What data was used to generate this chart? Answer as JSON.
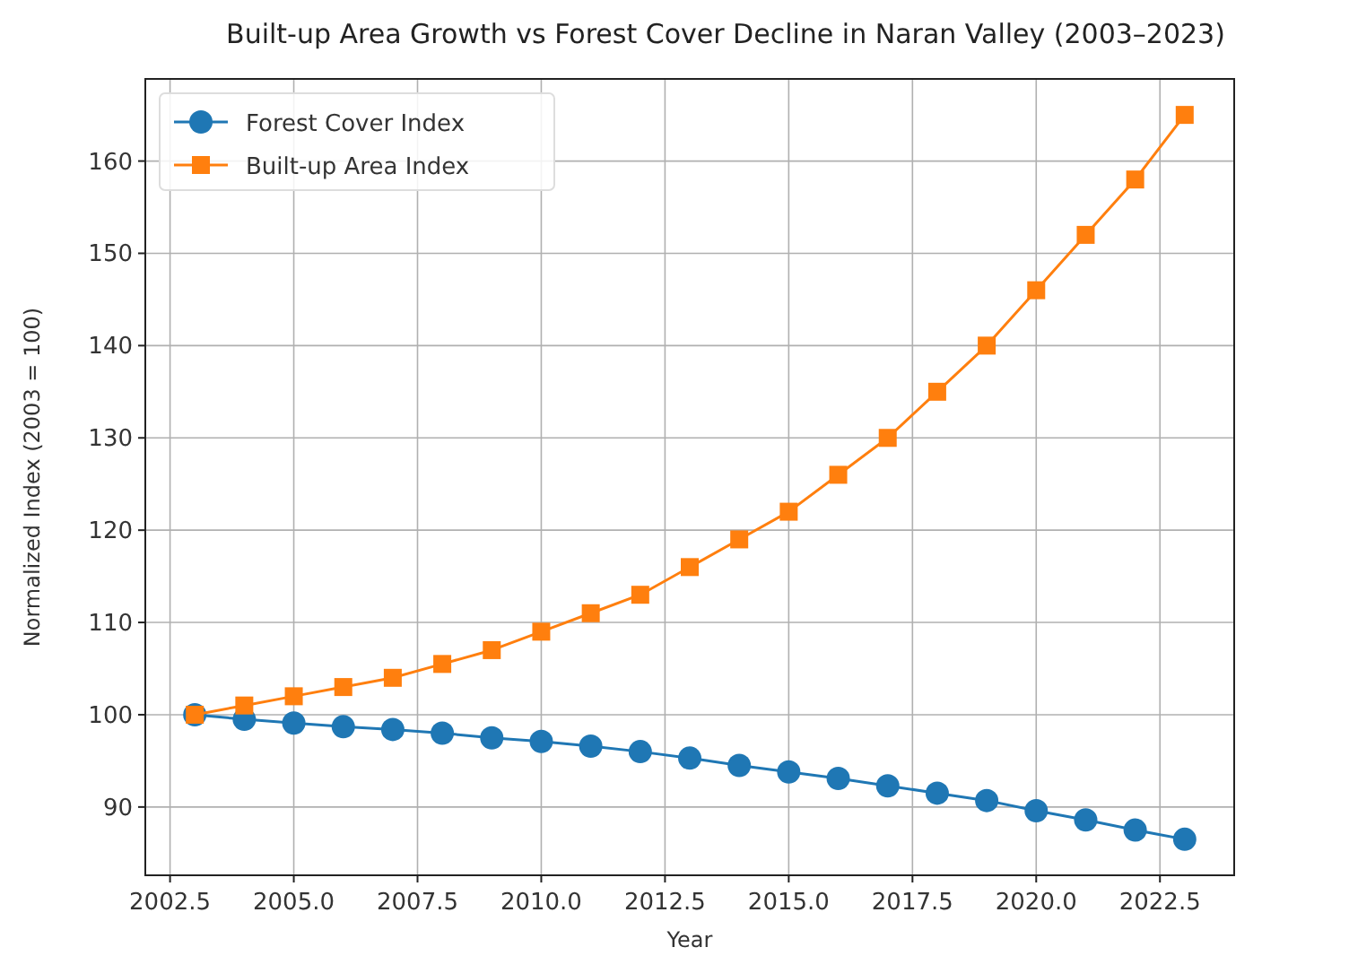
{
  "chart_data": {
    "type": "line",
    "title": "Built-up Area Growth vs Forest Cover Decline in Naran Valley (2003–2023)",
    "xlabel": "Year",
    "ylabel": "Normalized Index (2003 = 100)",
    "x": [
      2003,
      2004,
      2005,
      2006,
      2007,
      2008,
      2009,
      2010,
      2011,
      2012,
      2013,
      2014,
      2015,
      2016,
      2017,
      2018,
      2019,
      2020,
      2021,
      2022,
      2023
    ],
    "series": [
      {
        "name": "Forest Cover Index",
        "color": "#1f77b4",
        "marker": "circle",
        "values": [
          100,
          99.5,
          99.1,
          98.7,
          98.4,
          98,
          97.5,
          97.1,
          96.6,
          96,
          95.3,
          94.5,
          93.8,
          93.1,
          92.3,
          91.5,
          90.7,
          89.6,
          88.6,
          87.5,
          86.5
        ]
      },
      {
        "name": "Built-up Area Index",
        "color": "#ff7f0e",
        "marker": "square",
        "values": [
          100,
          101,
          102,
          103,
          104,
          105.5,
          107,
          109,
          111,
          113,
          116,
          119,
          122,
          126,
          130,
          135,
          140,
          146,
          152,
          158,
          165
        ]
      }
    ],
    "xlim": [
      2002,
      2024
    ],
    "xticks": [
      {
        "value": 2002.5,
        "label": "2002.5"
      },
      {
        "value": 2005,
        "label": "2005.0"
      },
      {
        "value": 2007.5,
        "label": "2007.5"
      },
      {
        "value": 2010,
        "label": "2010.0"
      },
      {
        "value": 2012.5,
        "label": "2012.5"
      },
      {
        "value": 2015,
        "label": "2015.0"
      },
      {
        "value": 2017.5,
        "label": "2017.5"
      },
      {
        "value": 2020,
        "label": "2020.0"
      },
      {
        "value": 2022.5,
        "label": "2022.5"
      }
    ],
    "ylim": [
      82.6,
      168.9
    ],
    "yticks": [
      90,
      100,
      110,
      120,
      130,
      140,
      150,
      160
    ],
    "grid": true,
    "legend": "top left",
    "line_style": "solid"
  }
}
